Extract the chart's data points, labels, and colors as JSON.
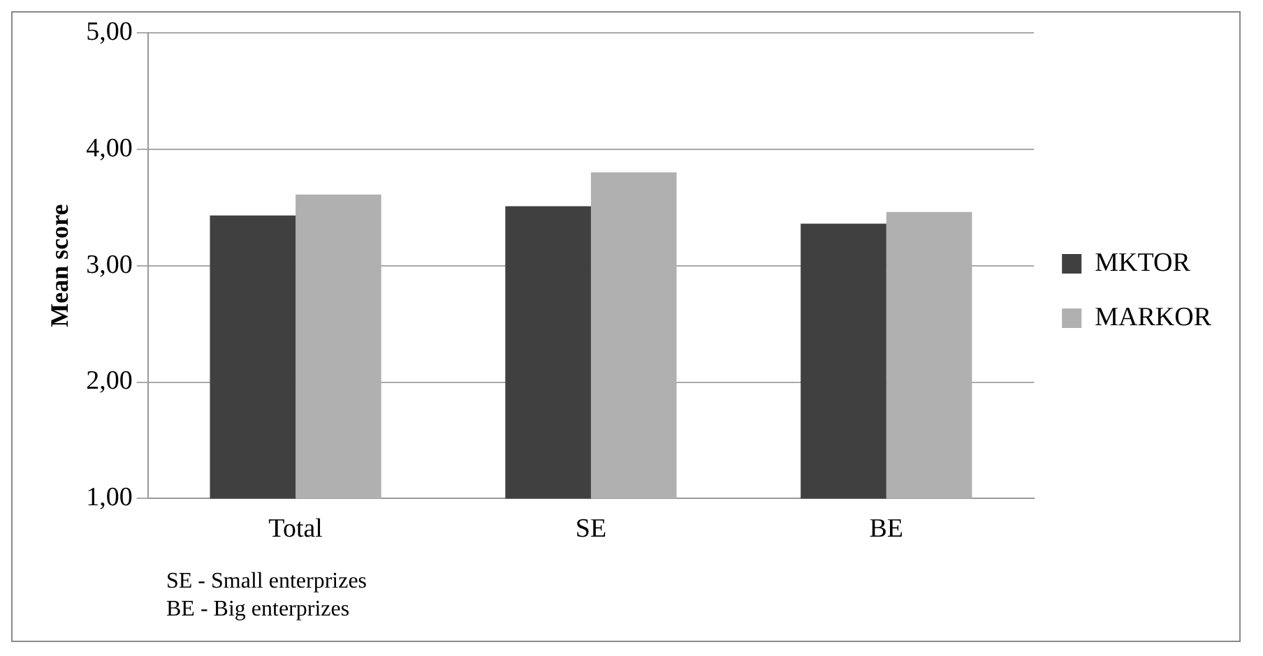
{
  "chart_data": {
    "type": "bar",
    "ylabel": "Mean score",
    "categories": [
      "Total",
      "SE",
      "BE"
    ],
    "series": [
      {
        "name": "MKTOR",
        "color": "#404040",
        "values": [
          3.43,
          3.51,
          3.36
        ]
      },
      {
        "name": "MARKOR",
        "color": "#b0b0b0",
        "values": [
          3.61,
          3.8,
          3.46
        ]
      }
    ],
    "ylim": [
      1,
      5
    ],
    "yticks": [
      {
        "value": 1,
        "label": "1,00"
      },
      {
        "value": 2,
        "label": "2,00"
      },
      {
        "value": 3,
        "label": "3,00"
      },
      {
        "value": 4,
        "label": "4,00"
      },
      {
        "value": 5,
        "label": "5,00"
      }
    ],
    "grid": "y",
    "legend": "right",
    "annotations": [
      "SE - Small enterprizes",
      "BE - Big enterprizes"
    ]
  }
}
